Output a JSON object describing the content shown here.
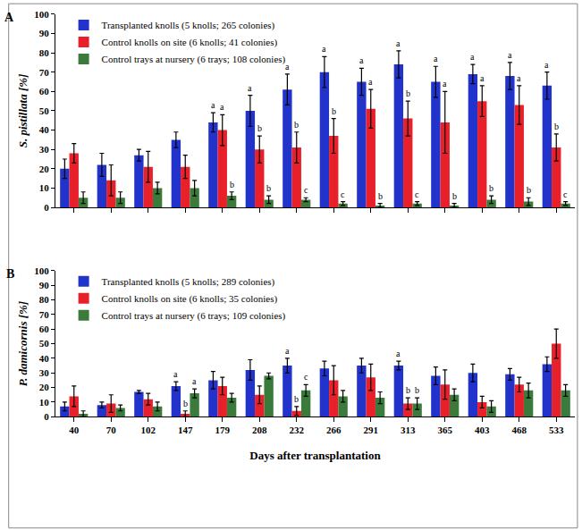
{
  "chart_data": [
    {
      "type": "bar",
      "title": "A",
      "categories": [
        "40",
        "70",
        "102",
        "147",
        "179",
        "208",
        "232",
        "266",
        "291",
        "313",
        "365",
        "403",
        "468",
        "533"
      ],
      "ylabel": "S. pistillata [%]",
      "ylim": [
        0,
        100
      ],
      "yticks": [
        0,
        10,
        20,
        30,
        40,
        50,
        60,
        70,
        80,
        90,
        100
      ],
      "grid": false,
      "tick_labels": "y",
      "legend": "upper left",
      "series": [
        {
          "name": "Transplanted knolls (5 knolls; 265 colonies)",
          "color": "#2233cc",
          "values": [
            20,
            22,
            27,
            35,
            44,
            50,
            61,
            70,
            65,
            74,
            65,
            69,
            68,
            63
          ],
          "errors": [
            5,
            6,
            3,
            4,
            5,
            8,
            8,
            8,
            7,
            7,
            8,
            5,
            7,
            7
          ],
          "letters": [
            null,
            null,
            null,
            null,
            "a",
            "a",
            "a",
            "a",
            "a",
            "a",
            "a",
            "a",
            "a",
            "a"
          ]
        },
        {
          "name": "Control knolls on site (6 knolls; 41 colonies)",
          "color": "#e8202a",
          "values": [
            28,
            14,
            21,
            21,
            40,
            30,
            31,
            37,
            51,
            46,
            44,
            55,
            53,
            31
          ],
          "errors": [
            5,
            8,
            8,
            6,
            8,
            7,
            8,
            9,
            10,
            9,
            16,
            8,
            10,
            7
          ],
          "letters": [
            null,
            null,
            null,
            null,
            "a",
            "b",
            "b",
            "b",
            "a",
            "b",
            "a",
            "a",
            "a",
            "b"
          ]
        },
        {
          "name": "Control trays at nursery (6 trays; 108 colonies)",
          "color": "#3a7a3a",
          "values": [
            5,
            5,
            10,
            10,
            6,
            4,
            4,
            2,
            1,
            2,
            1,
            4,
            3,
            2
          ],
          "errors": [
            3,
            3,
            3,
            4,
            2,
            2,
            1,
            1,
            1,
            1,
            1,
            2,
            2,
            1
          ],
          "letters": [
            null,
            null,
            null,
            null,
            "b",
            "b",
            "c",
            "c",
            "b",
            "c",
            "b",
            "b",
            "b",
            "c"
          ]
        }
      ]
    },
    {
      "type": "bar",
      "title": "B",
      "categories": [
        "40",
        "70",
        "102",
        "147",
        "179",
        "208",
        "232",
        "266",
        "291",
        "313",
        "365",
        "403",
        "468",
        "533"
      ],
      "xlabel": "Days after transplantation",
      "ylabel": "P. damicornis [%]",
      "ylim": [
        0,
        100
      ],
      "yticks": [
        0,
        10,
        20,
        30,
        40,
        50,
        60,
        70,
        80,
        90,
        100
      ],
      "grid": false,
      "legend": "upper left",
      "series": [
        {
          "name": "Transplanted knolls (5 knolls; 289 colonies)",
          "color": "#2233cc",
          "values": [
            7,
            8,
            17,
            21,
            25,
            32,
            35,
            33,
            35,
            35,
            28,
            30,
            29,
            36
          ],
          "errors": [
            3,
            2,
            1,
            3,
            6,
            7,
            5,
            5,
            5,
            3,
            6,
            6,
            4,
            5
          ],
          "letters": [
            null,
            null,
            null,
            "a",
            null,
            null,
            "a",
            null,
            null,
            "a",
            null,
            null,
            null,
            null
          ]
        },
        {
          "name": "Control knolls on site (6 knolls; 35 colonies)",
          "color": "#e8202a",
          "values": [
            14,
            9,
            12,
            2,
            21,
            15,
            4,
            25,
            27,
            9,
            22,
            10,
            22,
            50
          ],
          "errors": [
            7,
            6,
            4,
            2,
            6,
            6,
            3,
            10,
            9,
            4,
            10,
            4,
            5,
            10
          ],
          "letters": [
            null,
            null,
            null,
            "b",
            null,
            null,
            "b",
            null,
            null,
            "b",
            null,
            null,
            null,
            null
          ]
        },
        {
          "name": "Control trays at nursery (6 trays; 109 colonies)",
          "color": "#3a7a3a",
          "values": [
            2,
            6,
            7,
            16,
            13,
            28,
            18,
            14,
            13,
            9,
            15,
            7,
            18,
            18
          ],
          "errors": [
            2,
            2,
            3,
            3,
            3,
            2,
            4,
            4,
            4,
            4,
            4,
            4,
            5,
            4
          ],
          "letters": [
            null,
            null,
            null,
            "a",
            null,
            null,
            "c",
            null,
            null,
            "b",
            null,
            null,
            null,
            null
          ]
        }
      ]
    }
  ]
}
